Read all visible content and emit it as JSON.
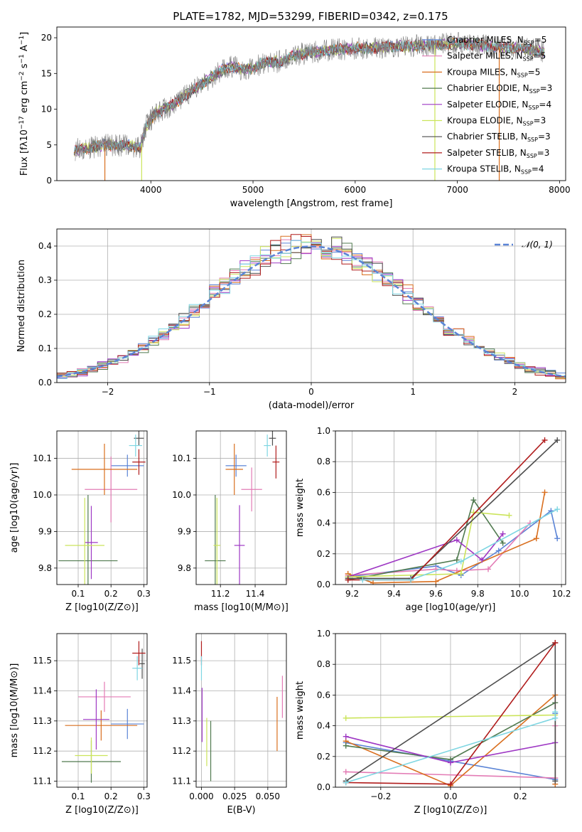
{
  "title": "PLATE=1782, MJD=53299, FIBERID=0342, z=0.175",
  "colors": {
    "chabrier_miles": "#5B84D6",
    "salpeter_miles": "#E37BB5",
    "kroupa_miles": "#D96F1F",
    "chabrier_elodie": "#507A4F",
    "salpeter_elodie": "#9E38C4",
    "kroupa_elodie": "#CBE45A",
    "chabrier_stelib": "#4E4E4E",
    "salpeter_stelib": "#B01C1C",
    "kroupa_stelib": "#7ED6E2",
    "data": "#7F7F7F",
    "normal": "#5B84D6"
  },
  "chart_data": [
    {
      "type": "line",
      "panel": "spectrum",
      "xlabel": "wavelength [Angstrom, rest frame]",
      "ylabel_text": "Flux [fλ10",
      "ylabel_exp": "−17",
      "ylabel_rest": " erg cm",
      "ylabel_exp2": "−2",
      "ylabel_rest2": " s",
      "ylabel_exp3": "−1",
      "ylabel_rest3": " A",
      "ylabel_exp4": "−1",
      "ylabel_end": "]",
      "xlim": [
        3080,
        8060
      ],
      "ylim": [
        0,
        21.5
      ],
      "xticks": [
        "4000",
        "5000",
        "6000",
        "7000",
        "8000"
      ],
      "yticks": [
        "0",
        "5",
        "10",
        "15",
        "20"
      ],
      "legend_position": "right",
      "legend": [
        {
          "label": "Chabrier MILES, N",
          "sub": "SSP",
          "val": "=5"
        },
        {
          "label": "Salpeter MILES, N",
          "sub": "SSP",
          "val": "=5"
        },
        {
          "label": "Kroupa MILES, N",
          "sub": "SSP",
          "val": "=5"
        },
        {
          "label": "Chabrier ELODIE, N",
          "sub": "SSP",
          "val": "=3"
        },
        {
          "label": "Salpeter ELODIE, N",
          "sub": "SSP",
          "val": "=4"
        },
        {
          "label": "Kroupa ELODIE, N",
          "sub": "SSP",
          "val": "=3"
        },
        {
          "label": "Chabrier STELIB, N",
          "sub": "SSP",
          "val": "=3"
        },
        {
          "label": "Salpeter STELIB, N",
          "sub": "SSP",
          "val": "=3"
        },
        {
          "label": "Kroupa STELIB, N",
          "sub": "SSP",
          "val": "=4"
        }
      ],
      "continuum": {
        "x": [
          3250,
          3400,
          3550,
          3700,
          3850,
          3900,
          3950,
          4050,
          4200,
          4300,
          4400,
          4500,
          4600,
          4700,
          4800,
          4900,
          5000,
          5100,
          5200,
          5300,
          5400,
          5500,
          5600,
          5800,
          6000,
          6200,
          6400,
          6600,
          6800,
          7000,
          7200,
          7400,
          7600,
          7800,
          7850
        ],
        "y": [
          4.3,
          4.6,
          5.0,
          4.9,
          4.8,
          4.7,
          7.5,
          9.5,
          10.5,
          11.5,
          12.5,
          13.5,
          14.5,
          15.5,
          16.0,
          15.5,
          15.8,
          16.5,
          16.5,
          16.8,
          17.5,
          17.8,
          18.0,
          18.3,
          18.5,
          18.6,
          18.8,
          18.9,
          19.0,
          19.2,
          19.0,
          18.7,
          18.5,
          18.2,
          18.0
        ]
      }
    },
    {
      "type": "bar",
      "panel": "residuals",
      "xlabel": "(data-model)/error",
      "ylabel": "Normed distribution",
      "xlim": [
        -2.5,
        2.5
      ],
      "ylim": [
        0,
        0.45
      ],
      "xticks": [
        "−2",
        "−1",
        "0",
        "1",
        "2"
      ],
      "yticks": [
        "0.0",
        "0.1",
        "0.2",
        "0.3",
        "0.4"
      ],
      "grid": true,
      "legend": [
        {
          "label": "𝒩(0, 1)"
        }
      ],
      "bin_width": 0.1,
      "bin_start": -2.5,
      "bins": 50
    },
    {
      "type": "scatter",
      "panel": "age_vs_Z",
      "xlabel": "Z [log10(Z/Z⊙)]",
      "ylabel": "age  [log10(age/yr)]",
      "xlim": [
        0.035,
        0.31
      ],
      "ylim": [
        9.755,
        10.175
      ],
      "xticks": [
        "0.1",
        "0.2",
        "0.3"
      ],
      "yticks": [
        "9.8",
        "9.9",
        "10.0",
        "10.1"
      ],
      "points": [
        {
          "c": "chabrier_miles",
          "x": 0.25,
          "xe": 0.05,
          "y": 10.08,
          "ye": 0.03
        },
        {
          "c": "salpeter_miles",
          "x": 0.2,
          "xe": 0.08,
          "y": 10.015,
          "ye": 0.09
        },
        {
          "c": "kroupa_miles",
          "x": 0.18,
          "xe": 0.1,
          "y": 10.07,
          "ye": 0.07
        },
        {
          "c": "chabrier_elodie",
          "x": 0.13,
          "xe": 0.09,
          "y": 9.82,
          "ye": 0.18
        },
        {
          "c": "salpeter_elodie",
          "x": 0.14,
          "xe": 0.02,
          "y": 9.87,
          "ye": 0.1
        },
        {
          "c": "kroupa_elodie",
          "x": 0.12,
          "xe": 0.06,
          "y": 9.862,
          "ye": 0.13
        },
        {
          "c": "chabrier_stelib",
          "x": 0.285,
          "xe": 0.015,
          "y": 10.155,
          "ye": 0.02
        },
        {
          "c": "salpeter_stelib",
          "x": 0.285,
          "xe": 0.02,
          "y": 10.09,
          "ye": 0.035
        },
        {
          "c": "kroupa_stelib",
          "x": 0.275,
          "xe": 0.02,
          "y": 10.135,
          "ye": 0.03
        }
      ]
    },
    {
      "type": "scatter",
      "panel": "age_vs_mass",
      "xlabel": "mass [log10(M/M⊙)]",
      "xlim": [
        11.06,
        11.58
      ],
      "ylim": [
        9.755,
        10.175
      ],
      "xticks": [
        "11.2",
        "11.4"
      ],
      "yticks": [
        "9.8",
        "9.9",
        "10.0",
        "10.1"
      ],
      "points": [
        {
          "c": "chabrier_miles",
          "x": 11.29,
          "xe": 0.06,
          "y": 10.08,
          "ye": 0.03
        },
        {
          "c": "salpeter_miles",
          "x": 11.38,
          "xe": 0.06,
          "y": 10.015,
          "ye": 0.06
        },
        {
          "c": "kroupa_miles",
          "x": 11.28,
          "xe": 0.05,
          "y": 10.07,
          "ye": 0.07
        },
        {
          "c": "chabrier_elodie",
          "x": 11.17,
          "xe": 0.06,
          "y": 9.82,
          "ye": 0.18
        },
        {
          "c": "salpeter_elodie",
          "x": 11.31,
          "xe": 0.03,
          "y": 9.862,
          "ye": 0.11
        },
        {
          "c": "kroupa_elodie",
          "x": 11.18,
          "xe": 0.02,
          "y": 9.862,
          "ye": 0.13
        },
        {
          "c": "chabrier_stelib",
          "x": 11.5,
          "xe": 0.02,
          "y": 10.155,
          "ye": 0.02
        },
        {
          "c": "salpeter_stelib",
          "x": 11.52,
          "xe": 0.02,
          "y": 10.09,
          "ye": 0.045
        },
        {
          "c": "kroupa_stelib",
          "x": 11.47,
          "xe": 0.02,
          "y": 10.135,
          "ye": 0.03
        }
      ]
    },
    {
      "type": "line",
      "panel": "weight_vs_age",
      "xlabel": "age  [log10(age/yr)]",
      "ylabel": "mass weight",
      "xlim": [
        9.12,
        10.22
      ],
      "ylim": [
        0,
        1.0
      ],
      "xticks": [
        "9.2",
        "9.4",
        "9.6",
        "9.8",
        "10.0",
        "10.2"
      ],
      "yticks": [
        "0.0",
        "0.2",
        "0.4",
        "0.6",
        "0.8",
        "1.0"
      ],
      "grid": true,
      "series": [
        {
          "c": "chabrier_miles",
          "x": [
            9.18,
            9.6,
            9.72,
            9.9,
            10.15,
            10.18
          ],
          "y": [
            0.05,
            0.12,
            0.06,
            0.22,
            0.48,
            0.3
          ]
        },
        {
          "c": "salpeter_miles",
          "x": [
            9.18,
            9.6,
            9.7,
            9.85,
            10.05
          ],
          "y": [
            0.06,
            0.1,
            0.09,
            0.1,
            0.4
          ]
        },
        {
          "c": "kroupa_miles",
          "x": [
            9.18,
            9.3,
            9.6,
            10.08,
            10.12
          ],
          "y": [
            0.07,
            0.01,
            0.02,
            0.3,
            0.6
          ]
        },
        {
          "c": "chabrier_elodie",
          "x": [
            9.18,
            9.7,
            9.78,
            9.92
          ],
          "y": [
            0.03,
            0.16,
            0.55,
            0.27
          ]
        },
        {
          "c": "salpeter_elodie",
          "x": [
            9.18,
            9.7,
            9.82,
            9.92
          ],
          "y": [
            0.05,
            0.29,
            0.16,
            0.33
          ]
        },
        {
          "c": "kroupa_elodie",
          "x": [
            9.18,
            9.72,
            9.78,
            9.95
          ],
          "y": [
            0.05,
            0.07,
            0.47,
            0.45
          ]
        },
        {
          "c": "chabrier_stelib",
          "x": [
            9.18,
            9.48,
            10.18
          ],
          "y": [
            0.04,
            0.04,
            0.94
          ]
        },
        {
          "c": "salpeter_stelib",
          "x": [
            9.18,
            9.48,
            10.12
          ],
          "y": [
            0.03,
            0.03,
            0.94
          ]
        },
        {
          "c": "kroupa_stelib",
          "x": [
            9.25,
            9.48,
            9.72,
            10.18
          ],
          "y": [
            0.03,
            0.03,
            0.15,
            0.49
          ]
        }
      ]
    },
    {
      "type": "scatter",
      "panel": "mass_vs_Z",
      "xlabel": "Z [log10(Z/Z⊙)]",
      "ylabel": "mass [log10(M/M⊙)]",
      "xlim": [
        0.035,
        0.31
      ],
      "ylim": [
        11.08,
        11.59
      ],
      "xticks": [
        "0.1",
        "0.2",
        "0.3"
      ],
      "yticks": [
        "11.1",
        "11.2",
        "11.3",
        "11.4",
        "11.5"
      ],
      "points": [
        {
          "c": "chabrier_miles",
          "x": 0.25,
          "xe": 0.05,
          "y": 11.29,
          "ye": 0.05
        },
        {
          "c": "salpeter_miles",
          "x": 0.18,
          "xe": 0.08,
          "y": 11.38,
          "ye": 0.05
        },
        {
          "c": "kroupa_miles",
          "x": 0.17,
          "xe": 0.11,
          "y": 11.285,
          "ye": 0.05
        },
        {
          "c": "chabrier_elodie",
          "x": 0.14,
          "xe": 0.09,
          "y": 11.165,
          "ye": 0.07
        },
        {
          "c": "salpeter_elodie",
          "x": 0.155,
          "xe": 0.04,
          "y": 11.305,
          "ye": 0.1
        },
        {
          "c": "kroupa_elodie",
          "x": 0.14,
          "xe": 0.05,
          "y": 11.185,
          "ye": 0.06
        },
        {
          "c": "chabrier_stelib",
          "x": 0.295,
          "xe": 0.008,
          "y": 11.49,
          "ye": 0.05
        },
        {
          "c": "salpeter_stelib",
          "x": 0.285,
          "xe": 0.02,
          "y": 11.525,
          "ye": 0.04
        },
        {
          "c": "kroupa_stelib",
          "x": 0.28,
          "xe": 0.015,
          "y": 11.475,
          "ye": 0.04
        }
      ]
    },
    {
      "type": "scatter",
      "panel": "mass_vs_ebv",
      "xlabel": "E(B-V)",
      "xlim": [
        -0.004,
        0.064
      ],
      "ylim": [
        11.08,
        11.59
      ],
      "xticks": [
        "0.000",
        "0.025",
        "0.050"
      ],
      "yticks": [
        "11.1",
        "11.2",
        "11.3",
        "11.4",
        "11.5"
      ],
      "points": [
        {
          "c": "kroupa_miles",
          "x": 0.057,
          "xe": 0.0,
          "y": 11.29,
          "ye": 0.09
        },
        {
          "c": "salpeter_miles",
          "x": 0.061,
          "xe": 0.0,
          "y": 11.38,
          "ye": 0.07
        },
        {
          "c": "chabrier_elodie",
          "x": 0.007,
          "xe": 0.0,
          "y": 11.2,
          "ye": 0.1
        },
        {
          "c": "kroupa_elodie",
          "x": 0.004,
          "xe": 0.0,
          "y": 11.23,
          "ye": 0.08
        },
        {
          "c": "salpeter_elodie",
          "x": 0.0005,
          "xe": 0.0,
          "y": 11.32,
          "ye": 0.09
        },
        {
          "c": "salpeter_stelib",
          "x": 0.0,
          "xe": 0.0,
          "y": 11.525,
          "ye": 0.04
        },
        {
          "c": "kroupa_stelib",
          "x": 0.0,
          "xe": 0.0,
          "y": 11.475,
          "ye": 0.04
        }
      ]
    },
    {
      "type": "line",
      "panel": "weight_vs_Z",
      "xlabel": "Z [log10(Z/Z⊙)]",
      "ylabel": "mass weight",
      "xlim": [
        -0.33,
        0.33
      ],
      "ylim": [
        0,
        1.0
      ],
      "xticks": [
        "−0.2",
        "0.0",
        "0.2"
      ],
      "yticks": [
        "0.0",
        "0.2",
        "0.4",
        "0.6",
        "0.8",
        "1.0"
      ],
      "grid": true,
      "series": [
        {
          "c": "chabrier_miles",
          "x": [
            -0.3,
            0.0,
            0.3,
            0.3
          ],
          "y": [
            0.29,
            0.17,
            0.05,
            0.48
          ]
        },
        {
          "c": "salpeter_miles",
          "x": [
            -0.3,
            0.3,
            0.3
          ],
          "y": [
            0.1,
            0.06,
            0.4
          ]
        },
        {
          "c": "kroupa_miles",
          "x": [
            -0.3,
            0.0,
            0.3,
            0.3
          ],
          "y": [
            0.3,
            0.01,
            0.6,
            0.02
          ]
        },
        {
          "c": "chabrier_elodie",
          "x": [
            -0.3,
            0.0,
            0.3
          ],
          "y": [
            0.27,
            0.18,
            0.55
          ]
        },
        {
          "c": "salpeter_elodie",
          "x": [
            -0.3,
            0.0,
            0.3
          ],
          "y": [
            0.33,
            0.16,
            0.29
          ]
        },
        {
          "c": "kroupa_elodie",
          "x": [
            -0.3,
            0.3
          ],
          "y": [
            0.45,
            0.47
          ]
        },
        {
          "c": "chabrier_stelib",
          "x": [
            -0.3,
            0.3,
            0.3
          ],
          "y": [
            0.04,
            0.94,
            0.04
          ]
        },
        {
          "c": "salpeter_stelib",
          "x": [
            -0.3,
            0.0,
            0.3
          ],
          "y": [
            0.03,
            0.02,
            0.94
          ]
        },
        {
          "c": "kroupa_stelib",
          "x": [
            -0.3,
            0.3,
            0.3
          ],
          "y": [
            0.03,
            0.45,
            0.49
          ]
        }
      ]
    }
  ]
}
